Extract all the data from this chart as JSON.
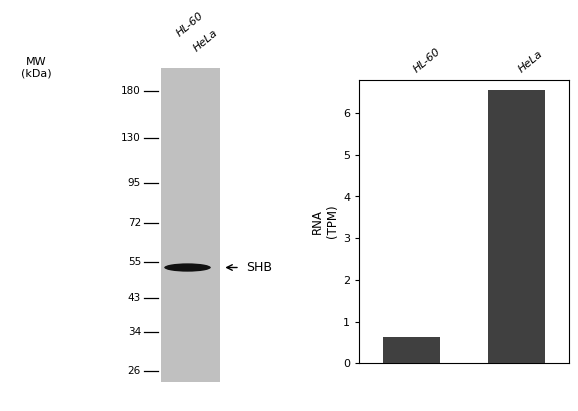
{
  "wb_panel": {
    "lane_labels": [
      "HL-60",
      "HeLa"
    ],
    "mw_markers": [
      180,
      130,
      95,
      72,
      55,
      43,
      34,
      26
    ],
    "band_mw": 53,
    "band_label": "SHB",
    "gel_color": "#c0c0c0",
    "band_color": "#111111",
    "mw_label": "MW\n(kDa)",
    "mw_log_min": 24,
    "mw_log_max": 210
  },
  "bar_panel": {
    "categories": [
      "HL-60",
      "HeLa"
    ],
    "values": [
      0.63,
      6.55
    ],
    "bar_color": "#404040",
    "ylabel": "RNA\n(TPM)",
    "yticks": [
      0,
      1,
      2,
      3,
      4,
      5,
      6
    ],
    "ylim": [
      0,
      6.8
    ],
    "bar_width": 0.55
  },
  "bg_color": "#ffffff"
}
